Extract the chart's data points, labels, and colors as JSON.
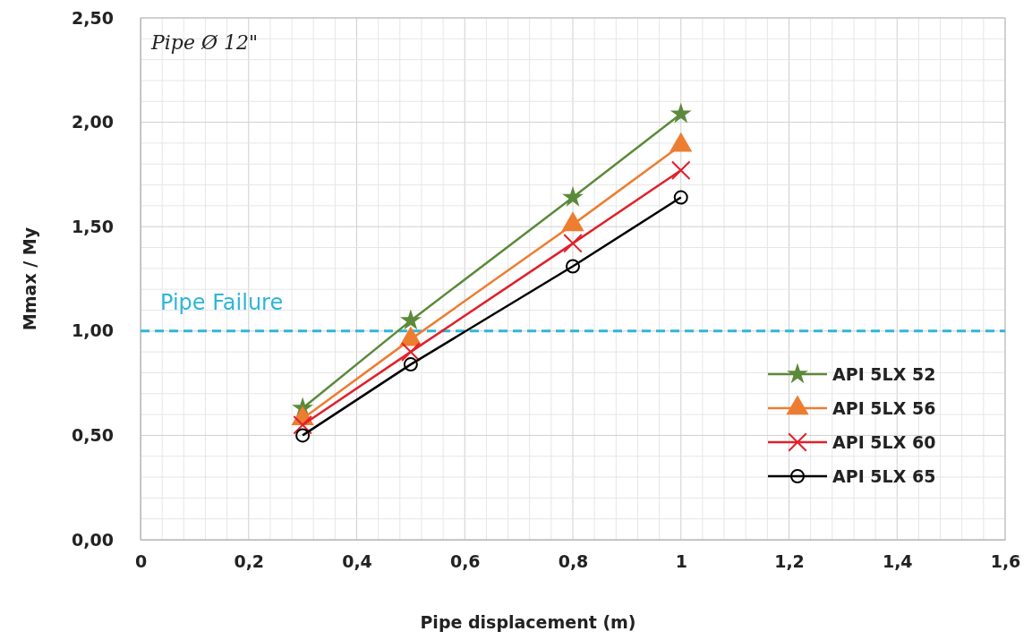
{
  "chart_data": {
    "type": "line",
    "xlabel": "Pipe displacement (m)",
    "ylabel": "Mmax / My",
    "x": [
      0.3,
      0.5,
      0.8,
      1.0
    ],
    "series": [
      {
        "name": "API 5LX 52",
        "color": "#5b8a3a",
        "marker": "star",
        "values": [
          0.63,
          1.05,
          1.64,
          2.04
        ]
      },
      {
        "name": "API 5LX 56",
        "color": "#ed7d31",
        "marker": "triangle",
        "values": [
          0.58,
          0.96,
          1.51,
          1.89
        ]
      },
      {
        "name": "API 5LX 60",
        "color": "#e0202a",
        "marker": "cross",
        "values": [
          0.55,
          0.9,
          1.42,
          1.77
        ]
      },
      {
        "name": "API 5LX 65",
        "color": "#000000",
        "marker": "circle",
        "values": [
          0.5,
          0.84,
          1.31,
          1.64
        ]
      }
    ],
    "xlim": [
      0,
      1.6
    ],
    "ylim": [
      0,
      2.5
    ],
    "xticks": [
      0,
      {
        "value": 0.2,
        "label": "0,2"
      },
      {
        "value": 0.4,
        "label": "0,4"
      },
      {
        "value": 0.6,
        "label": "0,6"
      },
      {
        "value": 0.8,
        "label": "0,8"
      },
      1,
      {
        "value": 1.2,
        "label": "1,2"
      },
      {
        "value": 1.4,
        "label": "1,4"
      },
      {
        "value": 1.6,
        "label": "1,6"
      }
    ],
    "yticks": [
      {
        "value": 0,
        "label": "0,00"
      },
      {
        "value": 0.5,
        "label": "0,50"
      },
      {
        "value": 1,
        "label": "1,00"
      },
      {
        "value": 1.5,
        "label": "1,50"
      },
      {
        "value": 2,
        "label": "2,00"
      },
      {
        "value": 2.5,
        "label": "2,50"
      }
    ],
    "ref_lines": [
      {
        "axis": "y",
        "value": 1.0,
        "label": "Pipe Failure",
        "color": "#2eb6d6",
        "line_style": "dashed"
      }
    ],
    "annotations": [
      "Pipe Ø 12\""
    ],
    "grid": true,
    "legend": "bottom right"
  }
}
